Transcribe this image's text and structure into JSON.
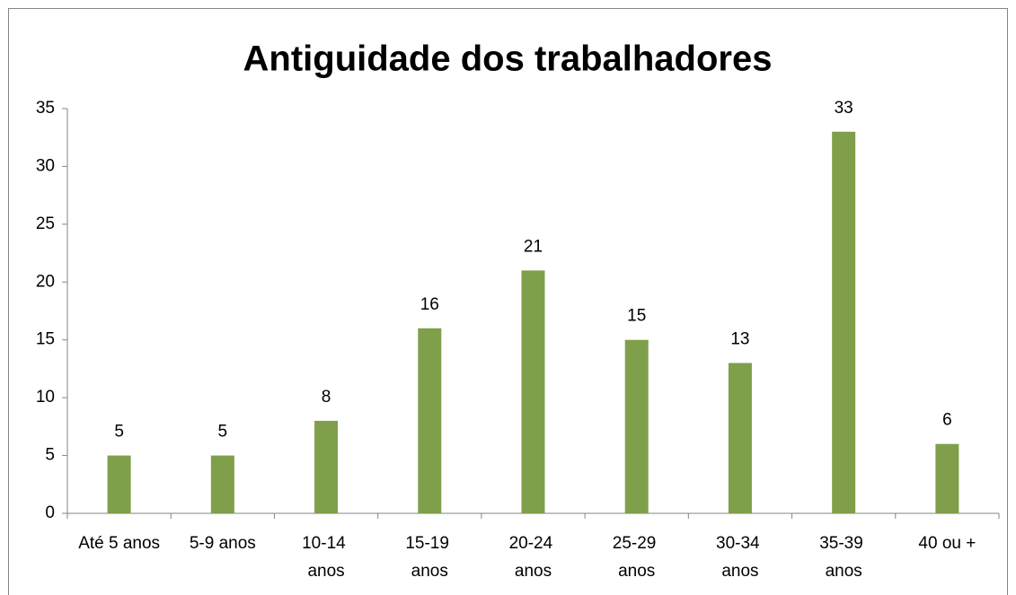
{
  "chart_data": {
    "type": "bar",
    "title": "Antiguidade dos trabalhadores",
    "categories": [
      "Até 5 anos",
      "5-9 anos",
      "10-14 anos",
      "15-19 anos",
      "20-24 anos",
      "25-29 anos",
      "30-34 anos",
      "35-39 anos",
      "40 ou +"
    ],
    "values": [
      5,
      5,
      8,
      16,
      21,
      15,
      13,
      33,
      6
    ],
    "color": "#7f9f4a",
    "ylim": [
      0,
      35
    ],
    "yticks": [
      0,
      5,
      10,
      15,
      20,
      25,
      30,
      35
    ],
    "grid": false,
    "data_labels": true
  }
}
